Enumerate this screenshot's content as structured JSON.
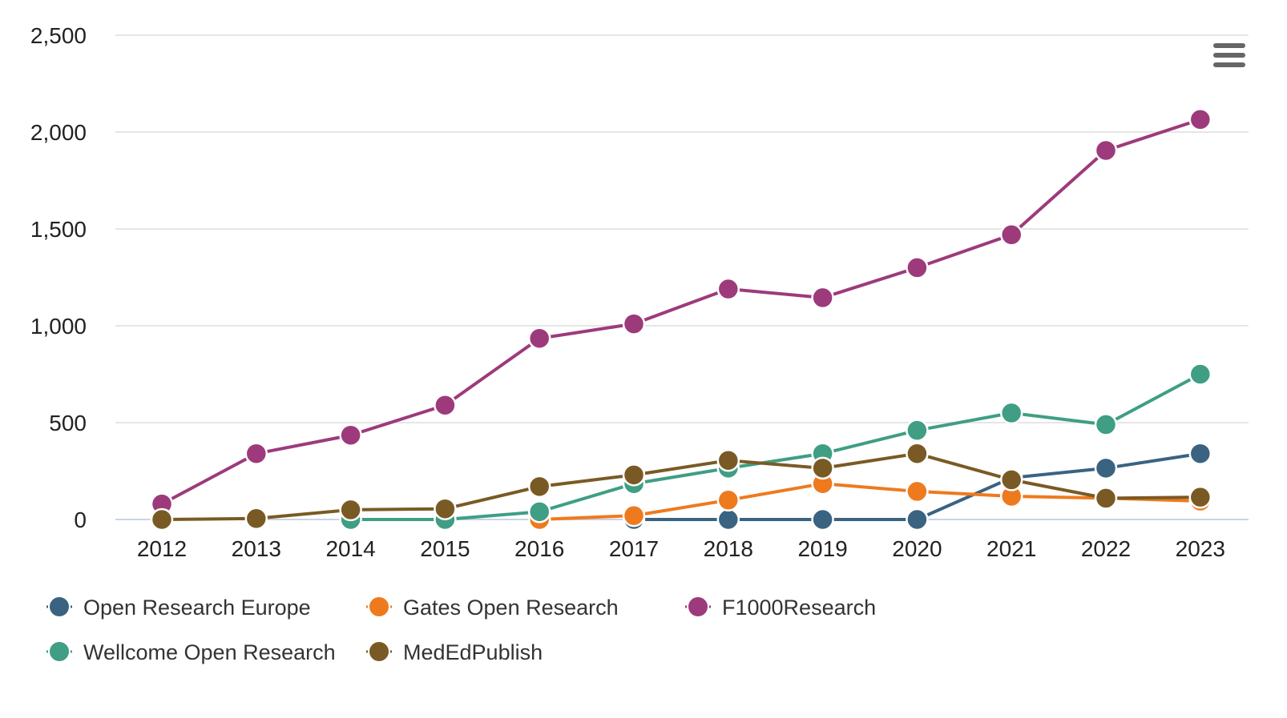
{
  "chart_data": {
    "type": "line",
    "categories": [
      "2012",
      "2013",
      "2014",
      "2015",
      "2016",
      "2017",
      "2018",
      "2019",
      "2020",
      "2021",
      "2022",
      "2023"
    ],
    "ylim": [
      0,
      2500
    ],
    "yticks": [
      0,
      500,
      1000,
      1500,
      2000,
      2500
    ],
    "ytick_labels": [
      "0",
      "500",
      "1,000",
      "1,500",
      "2,000",
      "2,500"
    ],
    "grid": true,
    "legend_position": "bottom-left",
    "series": [
      {
        "name": "Open Research Europe",
        "color": "#3a6382",
        "values": [
          null,
          null,
          null,
          null,
          null,
          0,
          0,
          0,
          0,
          215,
          265,
          340
        ]
      },
      {
        "name": "Gates Open Research",
        "color": "#ee7a1e",
        "values": [
          null,
          null,
          null,
          null,
          0,
          20,
          100,
          185,
          145,
          120,
          110,
          95
        ]
      },
      {
        "name": "F1000Research",
        "color": "#9d3a7c",
        "values": [
          80,
          340,
          435,
          590,
          935,
          1010,
          1190,
          1145,
          1300,
          1470,
          1905,
          2065
        ]
      },
      {
        "name": "Wellcome Open Research",
        "color": "#3f9e84",
        "values": [
          null,
          null,
          0,
          0,
          40,
          185,
          265,
          340,
          460,
          550,
          490,
          750
        ]
      },
      {
        "name": "MedEdPublish",
        "color": "#7a5a24",
        "values": [
          0,
          5,
          50,
          55,
          170,
          230,
          305,
          265,
          340,
          205,
          110,
          115
        ]
      }
    ]
  },
  "menu": {
    "icon": "hamburger-menu-icon"
  }
}
